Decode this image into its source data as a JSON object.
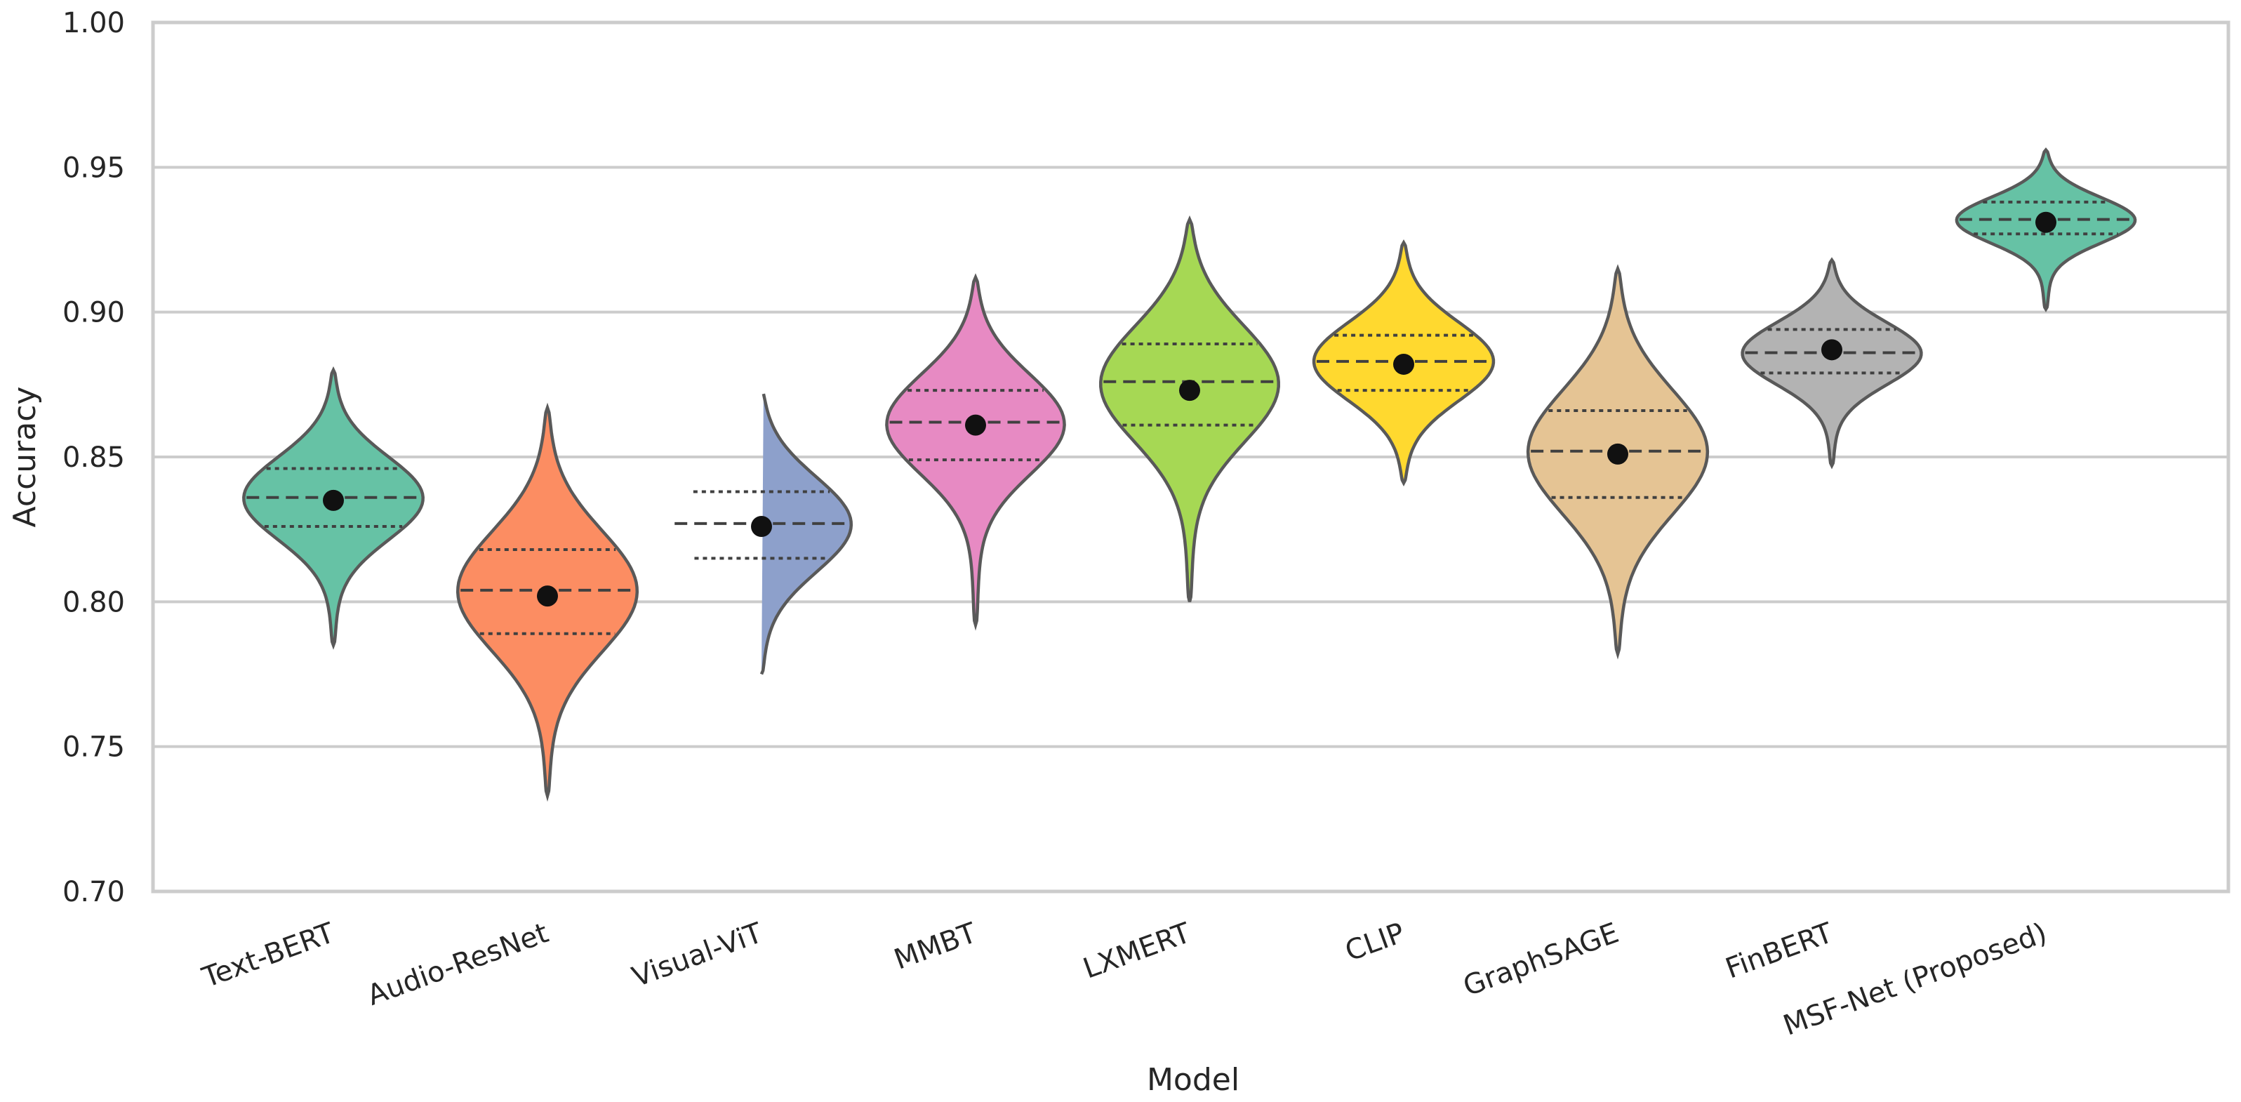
{
  "chart_data": {
    "type": "violin",
    "title": "",
    "xlabel": "Model",
    "ylabel": "Accuracy",
    "ylim": [
      0.7,
      1.0
    ],
    "yticks": [
      "0.70",
      "0.75",
      "0.80",
      "0.85",
      "0.90",
      "0.95",
      "1.00"
    ],
    "grid": true,
    "categories": [
      "Text-BERT",
      "Audio-ResNet",
      "Visual-ViT",
      "MMBT",
      "LXMERT",
      "CLIP",
      "GraphSAGE",
      "FinBERT",
      "MSF-Net (Proposed)"
    ],
    "colors": [
      "#66c2a5",
      "#fc8d62",
      "#8da0cb",
      "#e78ac3",
      "#a6d854",
      "#ffd92f",
      "#e5c494",
      "#b3b3b3",
      "#66c2a5"
    ],
    "series": [
      {
        "name": "Text-BERT",
        "min": 0.785,
        "max": 0.88,
        "q1": 0.826,
        "median": 0.836,
        "q3": 0.846,
        "mean": 0.835
      },
      {
        "name": "Audio-ResNet",
        "min": 0.733,
        "max": 0.867,
        "q1": 0.789,
        "median": 0.804,
        "q3": 0.818,
        "mean": 0.802
      },
      {
        "name": "Visual-ViT",
        "min": 0.775,
        "max": 0.873,
        "q1": 0.815,
        "median": 0.827,
        "q3": 0.838,
        "mean": 0.826
      },
      {
        "name": "MMBT",
        "min": 0.792,
        "max": 0.912,
        "q1": 0.849,
        "median": 0.862,
        "q3": 0.873,
        "mean": 0.861
      },
      {
        "name": "LXMERT",
        "min": 0.8,
        "max": 0.932,
        "q1": 0.861,
        "median": 0.876,
        "q3": 0.889,
        "mean": 0.873
      },
      {
        "name": "CLIP",
        "min": 0.841,
        "max": 0.924,
        "q1": 0.873,
        "median": 0.883,
        "q3": 0.892,
        "mean": 0.882
      },
      {
        "name": "GraphSAGE",
        "min": 0.782,
        "max": 0.915,
        "q1": 0.836,
        "median": 0.852,
        "q3": 0.866,
        "mean": 0.851
      },
      {
        "name": "FinBERT",
        "min": 0.847,
        "max": 0.918,
        "q1": 0.879,
        "median": 0.886,
        "q3": 0.894,
        "mean": 0.887
      },
      {
        "name": "MSF-Net (Proposed)",
        "min": 0.901,
        "max": 0.956,
        "q1": 0.927,
        "median": 0.932,
        "q3": 0.938,
        "mean": 0.931
      }
    ]
  }
}
